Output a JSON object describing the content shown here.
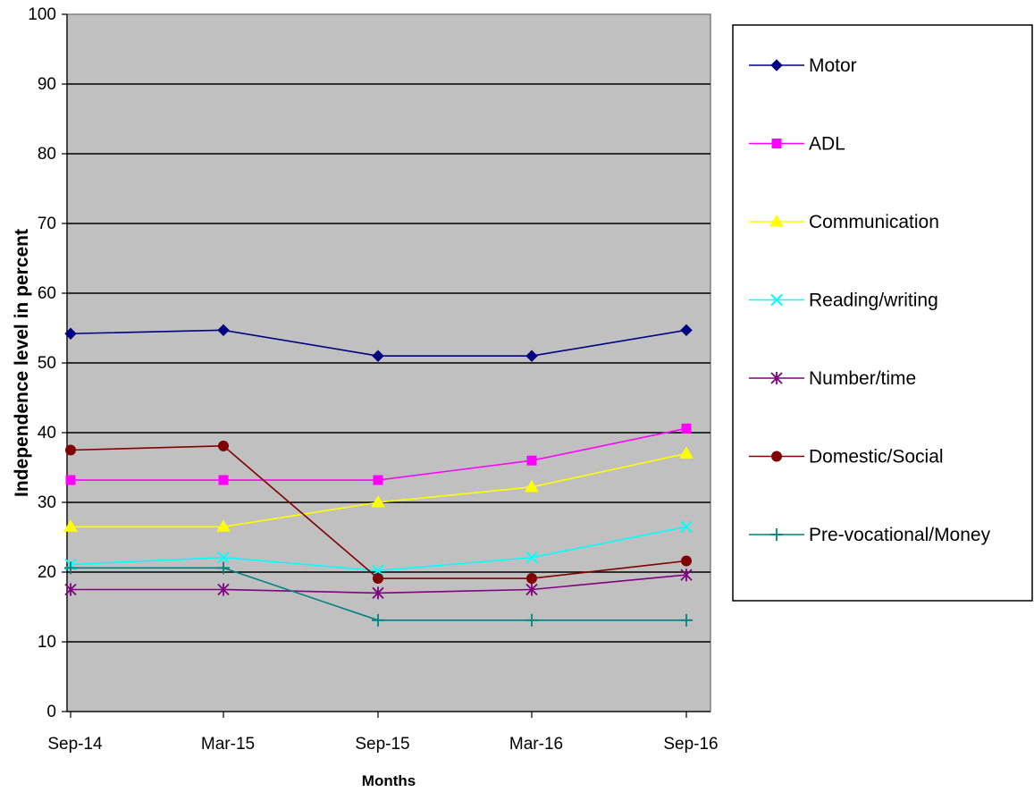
{
  "chart_data": {
    "type": "line",
    "title": "",
    "xlabel": "Months",
    "ylabel": "Independence level in percent",
    "categories": [
      "Sep-14",
      "Mar-15",
      "Sep-15",
      "Mar-16",
      "Sep-16"
    ],
    "ylim": [
      0,
      100
    ],
    "yticks": [
      0,
      10,
      20,
      30,
      40,
      50,
      60,
      70,
      80,
      90,
      100
    ],
    "grid": true,
    "plot_background": "#c0c0c0",
    "legend_position": "right",
    "series": [
      {
        "name": "Motor",
        "color": "#000080",
        "marker": "diamond",
        "values": [
          54.2,
          54.7,
          51.0,
          51.0,
          54.7
        ]
      },
      {
        "name": "ADL",
        "color": "#ff00ff",
        "marker": "square",
        "values": [
          33.2,
          33.2,
          33.2,
          36.0,
          40.6
        ]
      },
      {
        "name": "Communication",
        "color": "#ffff00",
        "marker": "triangle",
        "values": [
          26.5,
          26.5,
          30.0,
          32.2,
          37.0
        ]
      },
      {
        "name": "Reading/writing",
        "color": "#00ffff",
        "marker": "x",
        "values": [
          21.1,
          22.1,
          20.2,
          22.1,
          26.5
        ]
      },
      {
        "name": "Number/time",
        "color": "#800080",
        "marker": "star",
        "values": [
          17.5,
          17.5,
          17.0,
          17.5,
          19.6
        ]
      },
      {
        "name": "Domestic/Social",
        "color": "#800000",
        "marker": "circle",
        "values": [
          37.5,
          38.1,
          19.1,
          19.1,
          21.6
        ]
      },
      {
        "name": "Pre-vocational/Money",
        "color": "#008080",
        "marker": "plus",
        "values": [
          20.6,
          20.6,
          13.1,
          13.1,
          13.1
        ]
      }
    ]
  }
}
